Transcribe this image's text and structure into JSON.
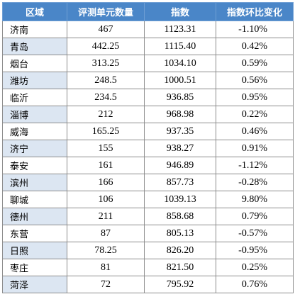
{
  "table": {
    "headers": [
      "区域",
      "评测单元数量",
      "指数",
      "指数环比变化"
    ],
    "rows": [
      {
        "city": "济南",
        "units": "467",
        "index": "1123.31",
        "change": "-1.10%"
      },
      {
        "city": "青岛",
        "units": "442.25",
        "index": "1115.40",
        "change": "0.42%"
      },
      {
        "city": "烟台",
        "units": "313.25",
        "index": "1034.10",
        "change": "0.59%"
      },
      {
        "city": "潍坊",
        "units": "248.5",
        "index": "1000.51",
        "change": "0.56%"
      },
      {
        "city": "临沂",
        "units": "234.5",
        "index": "936.85",
        "change": "0.95%"
      },
      {
        "city": "淄博",
        "units": "212",
        "index": "968.98",
        "change": "0.22%"
      },
      {
        "city": "威海",
        "units": "165.25",
        "index": "937.35",
        "change": "0.46%"
      },
      {
        "city": "济宁",
        "units": "155",
        "index": "938.27",
        "change": "0.91%"
      },
      {
        "city": "泰安",
        "units": "161",
        "index": "946.89",
        "change": "-1.12%"
      },
      {
        "city": "滨州",
        "units": "166",
        "index": "857.73",
        "change": "-0.28%"
      },
      {
        "city": "聊城",
        "units": "106",
        "index": "1039.13",
        "change": "9.80%"
      },
      {
        "city": "德州",
        "units": "211",
        "index": "858.68",
        "change": "0.79%"
      },
      {
        "city": "东营",
        "units": "87",
        "index": "805.13",
        "change": "-0.57%"
      },
      {
        "city": "日照",
        "units": "78.25",
        "index": "826.20",
        "change": "-0.95%"
      },
      {
        "city": "枣庄",
        "units": "81",
        "index": "821.50",
        "change": "0.25%"
      },
      {
        "city": "菏泽",
        "units": "72",
        "index": "795.92",
        "change": "0.76%"
      }
    ]
  }
}
